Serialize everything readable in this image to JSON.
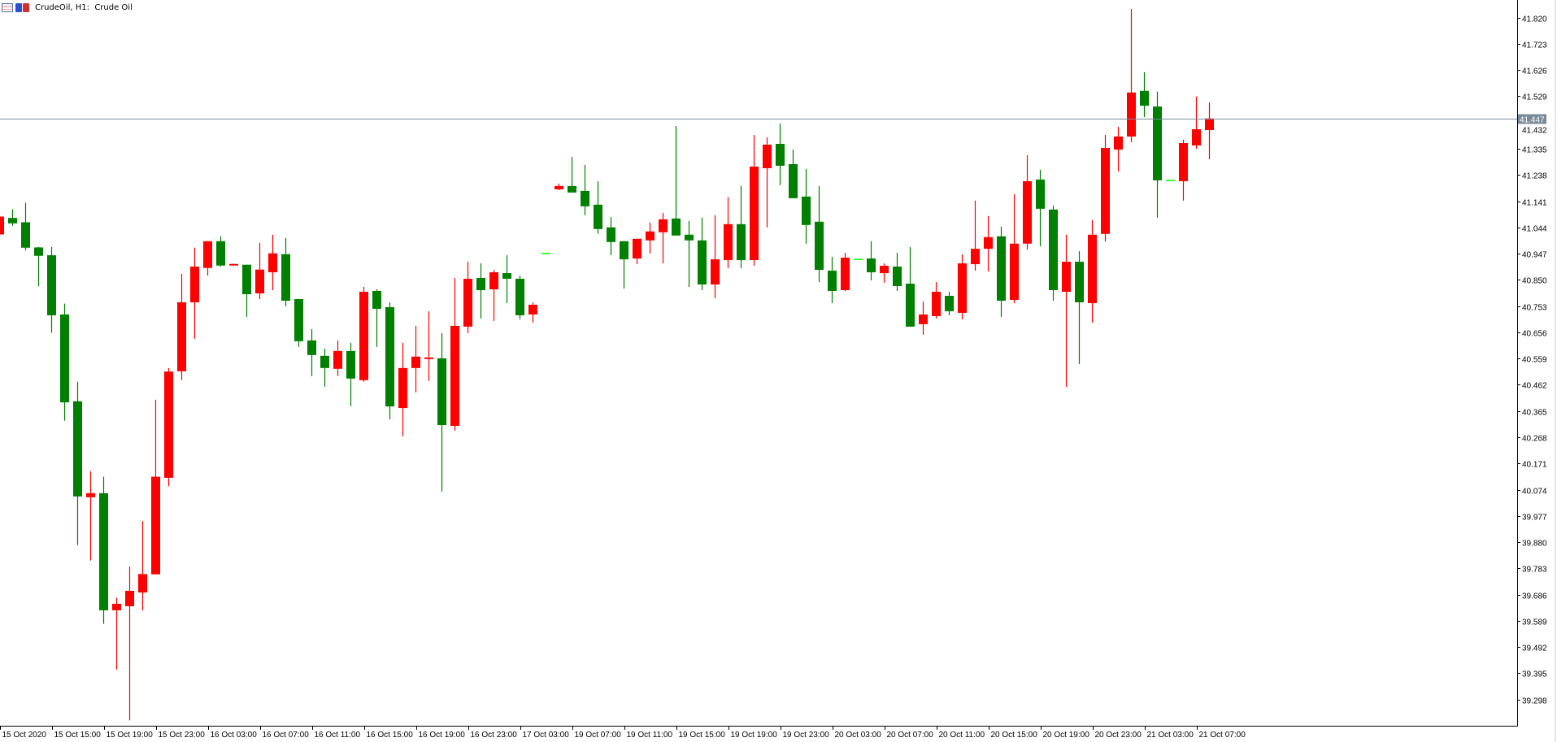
{
  "title": {
    "text": "CrudeOil, H1:  Crude Oil",
    "icons": [
      "chart-table-icon",
      "save-template-icon"
    ]
  },
  "chart_data": {
    "type": "candlestick",
    "symbol": "CrudeOil",
    "timeframe": "H1",
    "colors": {
      "bull": "#ff0000",
      "bear": "#008000",
      "doji": "#00ff00",
      "price_line": "#7b8a99",
      "axis": "#000000",
      "background": "#ffffff"
    },
    "current_price": "41.447",
    "ylim": [
      39.201,
      41.885
    ],
    "grid": false,
    "y_axis": {
      "ticks": [
        "41.820",
        "41.723",
        "41.626",
        "41.529",
        "41.432",
        "41.335",
        "41.238",
        "41.141",
        "41.044",
        "40.947",
        "40.850",
        "40.753",
        "40.656",
        "40.559",
        "40.462",
        "40.365",
        "40.268",
        "40.171",
        "40.074",
        "39.977",
        "39.880",
        "39.783",
        "39.686",
        "39.589",
        "39.492",
        "39.395",
        "39.298"
      ]
    },
    "x_axis": {
      "ticks": [
        {
          "label": "15 Oct 2020",
          "bar": 0
        },
        {
          "label": "15 Oct 15:00",
          "bar": 4
        },
        {
          "label": "15 Oct 19:00",
          "bar": 8
        },
        {
          "label": "15 Oct 23:00",
          "bar": 12
        },
        {
          "label": "16 Oct 03:00",
          "bar": 16
        },
        {
          "label": "16 Oct 07:00",
          "bar": 20
        },
        {
          "label": "16 Oct 11:00",
          "bar": 24
        },
        {
          "label": "16 Oct 15:00",
          "bar": 28
        },
        {
          "label": "16 Oct 19:00",
          "bar": 32
        },
        {
          "label": "16 Oct 23:00",
          "bar": 36
        },
        {
          "label": "17 Oct 03:00",
          "bar": 40
        },
        {
          "label": "19 Oct 07:00",
          "bar": 44
        },
        {
          "label": "19 Oct 11:00",
          "bar": 48
        },
        {
          "label": "19 Oct 15:00",
          "bar": 52
        },
        {
          "label": "19 Oct 19:00",
          "bar": 56
        },
        {
          "label": "19 Oct 23:00",
          "bar": 60
        },
        {
          "label": "20 Oct 03:00",
          "bar": 64
        },
        {
          "label": "20 Oct 07:00",
          "bar": 68
        },
        {
          "label": "20 Oct 11:00",
          "bar": 72
        },
        {
          "label": "20 Oct 15:00",
          "bar": 76
        },
        {
          "label": "20 Oct 19:00",
          "bar": 80
        },
        {
          "label": "20 Oct 23:00",
          "bar": 84
        },
        {
          "label": "21 Oct 03:00",
          "bar": 88
        },
        {
          "label": "21 Oct 07:00",
          "bar": 92
        }
      ]
    },
    "ohlc_fields": [
      "open",
      "high",
      "low",
      "close"
    ],
    "candles": [
      [
        41.018,
        41.09,
        41.012,
        41.084
      ],
      [
        41.079,
        41.111,
        41.05,
        41.059
      ],
      [
        41.063,
        41.135,
        40.959,
        40.969
      ],
      [
        40.97,
        40.972,
        40.827,
        40.939
      ],
      [
        40.941,
        40.972,
        40.655,
        40.719
      ],
      [
        40.722,
        40.762,
        40.329,
        40.397
      ],
      [
        40.401,
        40.473,
        39.869,
        40.049
      ],
      [
        40.046,
        40.142,
        39.812,
        40.061
      ],
      [
        40.061,
        40.122,
        39.578,
        39.628
      ],
      [
        39.628,
        39.674,
        39.409,
        39.652
      ],
      [
        39.643,
        39.79,
        39.221,
        39.7
      ],
      [
        39.694,
        39.958,
        39.628,
        39.762
      ],
      [
        39.761,
        40.407,
        39.761,
        40.122
      ],
      [
        40.118,
        40.524,
        40.087,
        40.511
      ],
      [
        40.512,
        40.872,
        40.479,
        40.767
      ],
      [
        40.767,
        40.969,
        40.632,
        40.899
      ],
      [
        40.894,
        40.993,
        40.866,
        40.993
      ],
      [
        40.993,
        41.011,
        40.899,
        40.903
      ],
      [
        40.903,
        40.909,
        40.903,
        40.909
      ],
      [
        40.906,
        40.906,
        40.713,
        40.797
      ],
      [
        40.8,
        40.987,
        40.779,
        40.888
      ],
      [
        40.878,
        41.017,
        40.812,
        40.948
      ],
      [
        40.945,
        41.005,
        40.752,
        40.773
      ],
      [
        40.779,
        40.779,
        40.602,
        40.623
      ],
      [
        40.626,
        40.668,
        40.494,
        40.572
      ],
      [
        40.569,
        40.596,
        40.455,
        40.524
      ],
      [
        40.521,
        40.626,
        40.494,
        40.587
      ],
      [
        40.587,
        40.617,
        40.383,
        40.485
      ],
      [
        40.479,
        40.824,
        40.473,
        40.806
      ],
      [
        40.809,
        40.815,
        40.602,
        40.743
      ],
      [
        40.749,
        40.767,
        40.334,
        40.382
      ],
      [
        40.376,
        40.617,
        40.271,
        40.524
      ],
      [
        40.524,
        40.68,
        40.434,
        40.566
      ],
      [
        40.557,
        40.734,
        40.476,
        40.563
      ],
      [
        40.56,
        40.653,
        40.067,
        40.313
      ],
      [
        40.31,
        40.857,
        40.292,
        40.68
      ],
      [
        40.677,
        40.917,
        40.653,
        40.854
      ],
      [
        40.857,
        40.911,
        40.707,
        40.812
      ],
      [
        40.815,
        40.887,
        40.698,
        40.878
      ],
      [
        40.875,
        40.941,
        40.764,
        40.854
      ],
      [
        40.854,
        40.866,
        40.704,
        40.719
      ],
      [
        40.722,
        40.767,
        40.692,
        40.758
      ],
      [
        40.95,
        40.95,
        40.95,
        40.95
      ],
      [
        41.185,
        41.206,
        41.182,
        41.197
      ],
      [
        41.197,
        41.305,
        41.173,
        41.173
      ],
      [
        41.179,
        41.275,
        41.089,
        41.122
      ],
      [
        41.128,
        41.215,
        41.02,
        41.038
      ],
      [
        41.044,
        41.083,
        40.941,
        40.99
      ],
      [
        40.993,
        40.993,
        40.818,
        40.926
      ],
      [
        40.929,
        41.002,
        40.908,
        41.002
      ],
      [
        40.996,
        41.062,
        40.947,
        41.029
      ],
      [
        41.026,
        41.098,
        40.911,
        41.074
      ],
      [
        41.077,
        41.419,
        41.014,
        41.014
      ],
      [
        41.017,
        41.068,
        40.824,
        40.996
      ],
      [
        40.996,
        41.08,
        40.812,
        40.833
      ],
      [
        40.833,
        41.089,
        40.782,
        40.926
      ],
      [
        40.923,
        41.155,
        40.893,
        41.056
      ],
      [
        41.056,
        41.197,
        40.893,
        40.923
      ],
      [
        40.923,
        41.386,
        40.902,
        41.269
      ],
      [
        41.263,
        41.377,
        41.044,
        41.35
      ],
      [
        41.353,
        41.428,
        41.2,
        41.272
      ],
      [
        41.278,
        41.332,
        41.152,
        41.152
      ],
      [
        41.158,
        41.26,
        40.984,
        41.053
      ],
      [
        41.065,
        41.197,
        40.842,
        40.887
      ],
      [
        40.884,
        40.935,
        40.764,
        40.809
      ],
      [
        40.812,
        40.95,
        40.809,
        40.932
      ],
      [
        40.928,
        40.928,
        40.928,
        40.928
      ],
      [
        40.929,
        40.993,
        40.848,
        40.878
      ],
      [
        40.875,
        40.911,
        40.839,
        40.902
      ],
      [
        40.899,
        40.95,
        40.809,
        40.827
      ],
      [
        40.836,
        40.971,
        40.677,
        40.677
      ],
      [
        40.686,
        40.77,
        40.647,
        40.722
      ],
      [
        40.716,
        40.842,
        40.707,
        40.806
      ],
      [
        40.791,
        40.806,
        40.719,
        40.734
      ],
      [
        40.728,
        40.944,
        40.704,
        40.911
      ],
      [
        40.908,
        41.143,
        40.884,
        40.965
      ],
      [
        40.965,
        41.086,
        40.881,
        41.008
      ],
      [
        41.011,
        41.047,
        40.713,
        40.773
      ],
      [
        40.776,
        41.167,
        40.764,
        40.984
      ],
      [
        40.984,
        41.311,
        40.962,
        41.215
      ],
      [
        41.221,
        41.257,
        40.974,
        41.113
      ],
      [
        41.11,
        41.125,
        40.773,
        40.812
      ],
      [
        40.806,
        41.017,
        40.454,
        40.917
      ],
      [
        40.917,
        40.956,
        40.539,
        40.767
      ],
      [
        40.764,
        41.071,
        40.692,
        41.017
      ],
      [
        41.02,
        41.386,
        40.992,
        41.338
      ],
      [
        41.332,
        41.416,
        41.251,
        41.38
      ],
      [
        41.38,
        41.852,
        41.359,
        41.543
      ],
      [
        41.549,
        41.618,
        41.452,
        41.494
      ],
      [
        41.491,
        41.546,
        41.08,
        41.218
      ],
      [
        41.22,
        41.22,
        41.22,
        41.22
      ],
      [
        41.215,
        41.368,
        41.143,
        41.356
      ],
      [
        41.347,
        41.528,
        41.335,
        41.407
      ],
      [
        41.404,
        41.506,
        41.296,
        41.447
      ]
    ]
  }
}
